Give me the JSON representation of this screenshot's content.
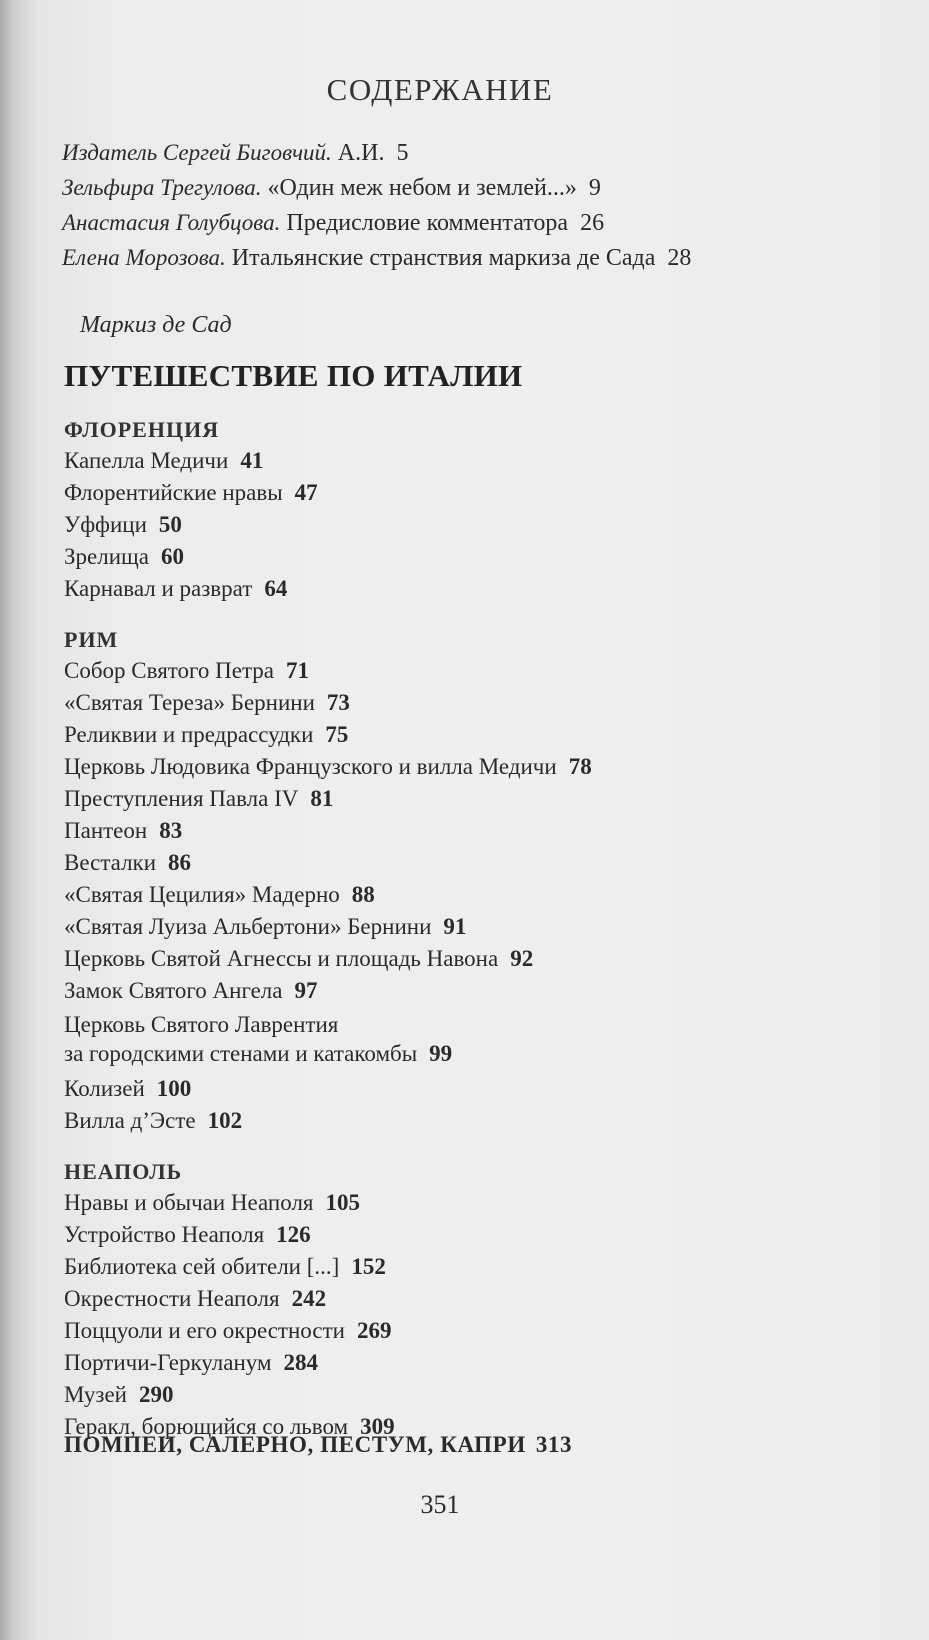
{
  "header": {
    "title": "СОДЕРЖАНИЕ"
  },
  "intro": [
    {
      "author": "Издатель Сергей Биговчий.",
      "title": "А.И.",
      "page": "5"
    },
    {
      "author": "Зельфира Трегулова.",
      "title": "«Один меж небом и землей...»",
      "page": "9"
    },
    {
      "author": "Анастасия Голубцова.",
      "title": "Предисловие комментатора",
      "page": "26"
    },
    {
      "author": "Елена Морозова.",
      "title": "Итальянские странствия маркиза де Сада",
      "page": "28"
    }
  ],
  "book": {
    "author": "Маркиз де Сад",
    "title": "ПУТЕШЕСТВИЕ ПО ИТАЛИИ"
  },
  "sections": [
    {
      "heading": "ФЛОРЕНЦИЯ",
      "items": [
        {
          "title": "Капелла Медичи",
          "page": "41"
        },
        {
          "title": "Флорентийские нравы",
          "page": "47"
        },
        {
          "title": "Уффици",
          "page": "50"
        },
        {
          "title": "Зрелища",
          "page": "60"
        },
        {
          "title": "Карнавал и разврат",
          "page": "64"
        }
      ]
    },
    {
      "heading": "РИМ",
      "items": [
        {
          "title": "Собор Святого Петра",
          "page": "71"
        },
        {
          "title": "«Святая Тереза» Бернини",
          "page": "73"
        },
        {
          "title": "Реликвии и предрассудки",
          "page": "75"
        },
        {
          "title": "Церковь Людовика Французского и вилла Медичи",
          "page": "78"
        },
        {
          "title": "Преступления Павла IV",
          "page": "81"
        },
        {
          "title": "Пантеон",
          "page": "83"
        },
        {
          "title": "Весталки",
          "page": "86"
        },
        {
          "title": "«Святая Цецилия» Мадерно",
          "page": "88"
        },
        {
          "title": "«Святая Луиза Альбертони» Бернини",
          "page": "91"
        },
        {
          "title": "Церковь Святой Агнессы и площадь Навона",
          "page": "92"
        },
        {
          "title": "Замок Святого Ангела",
          "page": "97"
        },
        {
          "title": "Церковь Святого Лаврентия",
          "title2": "за городскими стенами и катакомбы",
          "page": "99"
        },
        {
          "title": "Колизей",
          "page": "100"
        },
        {
          "title": "Вилла д’Эсте",
          "page": "102"
        }
      ]
    },
    {
      "heading": "НЕАПОЛЬ",
      "items": [
        {
          "title": "Нравы и обычаи Неаполя",
          "page": "105"
        },
        {
          "title": "Устройство Неаполя",
          "page": "126"
        },
        {
          "title": "Библиотека сей обители [...]",
          "page": "152"
        },
        {
          "title": "Окрестности Неаполя",
          "page": "242"
        },
        {
          "title": "Поццуоли и его окрестности",
          "page": "269"
        },
        {
          "title": "Портичи-Геркуланум",
          "page": "284"
        },
        {
          "title": "Музей",
          "page": "290"
        },
        {
          "title": "Геракл, борющийся со львом",
          "page": "309"
        }
      ]
    }
  ],
  "final_section": {
    "heading": "ПОМПЕИ, САЛЕРНО, ПЕСТУМ, КАПРИ",
    "page": "313"
  },
  "page_number": "351"
}
